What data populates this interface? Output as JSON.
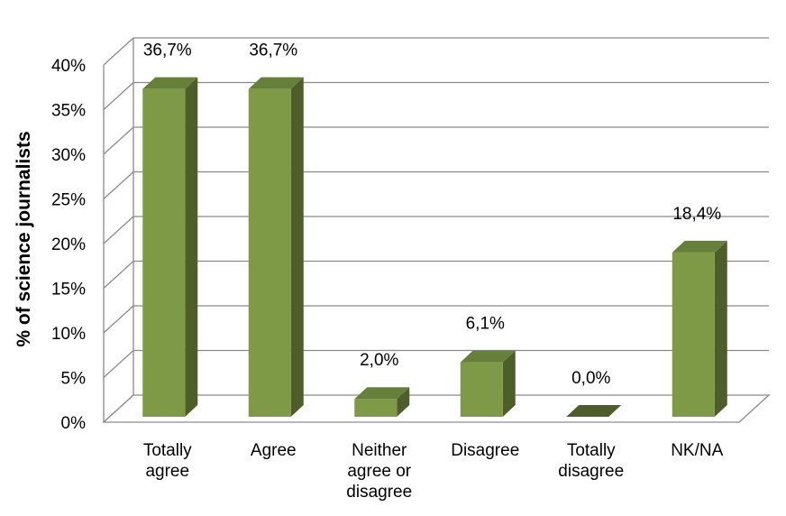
{
  "chart_data": {
    "type": "bar",
    "categories": [
      "Totally agree",
      "Agree",
      "Neither agree or disagree",
      "Disagree",
      "Totally disagree",
      "NK/NA"
    ],
    "category_lines": [
      [
        "Totally",
        "agree"
      ],
      [
        "Agree"
      ],
      [
        "Neither",
        "agree or",
        "disagree"
      ],
      [
        "Disagree"
      ],
      [
        "Totally",
        "disagree"
      ],
      [
        "NK/NA"
      ]
    ],
    "values": [
      36.7,
      36.7,
      2.0,
      6.1,
      0.0,
      18.4
    ],
    "data_labels": [
      "36,7%",
      "36,7%",
      "2,0%",
      "6,1%",
      "0,0%",
      "18,4%"
    ],
    "ylabel": "% of science journalists",
    "xlabel": "",
    "title": "",
    "ylim": [
      0,
      40
    ],
    "yticks": [
      0,
      5,
      10,
      15,
      20,
      25,
      30,
      35,
      40
    ],
    "ytick_labels": [
      "0%",
      "5%",
      "10%",
      "15%",
      "20%",
      "25%",
      "30%",
      "35%",
      "40%"
    ],
    "grid": true,
    "bar_colors": {
      "front": "#7f9a47",
      "side": "#4e5e2b",
      "top": "#66803a"
    }
  }
}
